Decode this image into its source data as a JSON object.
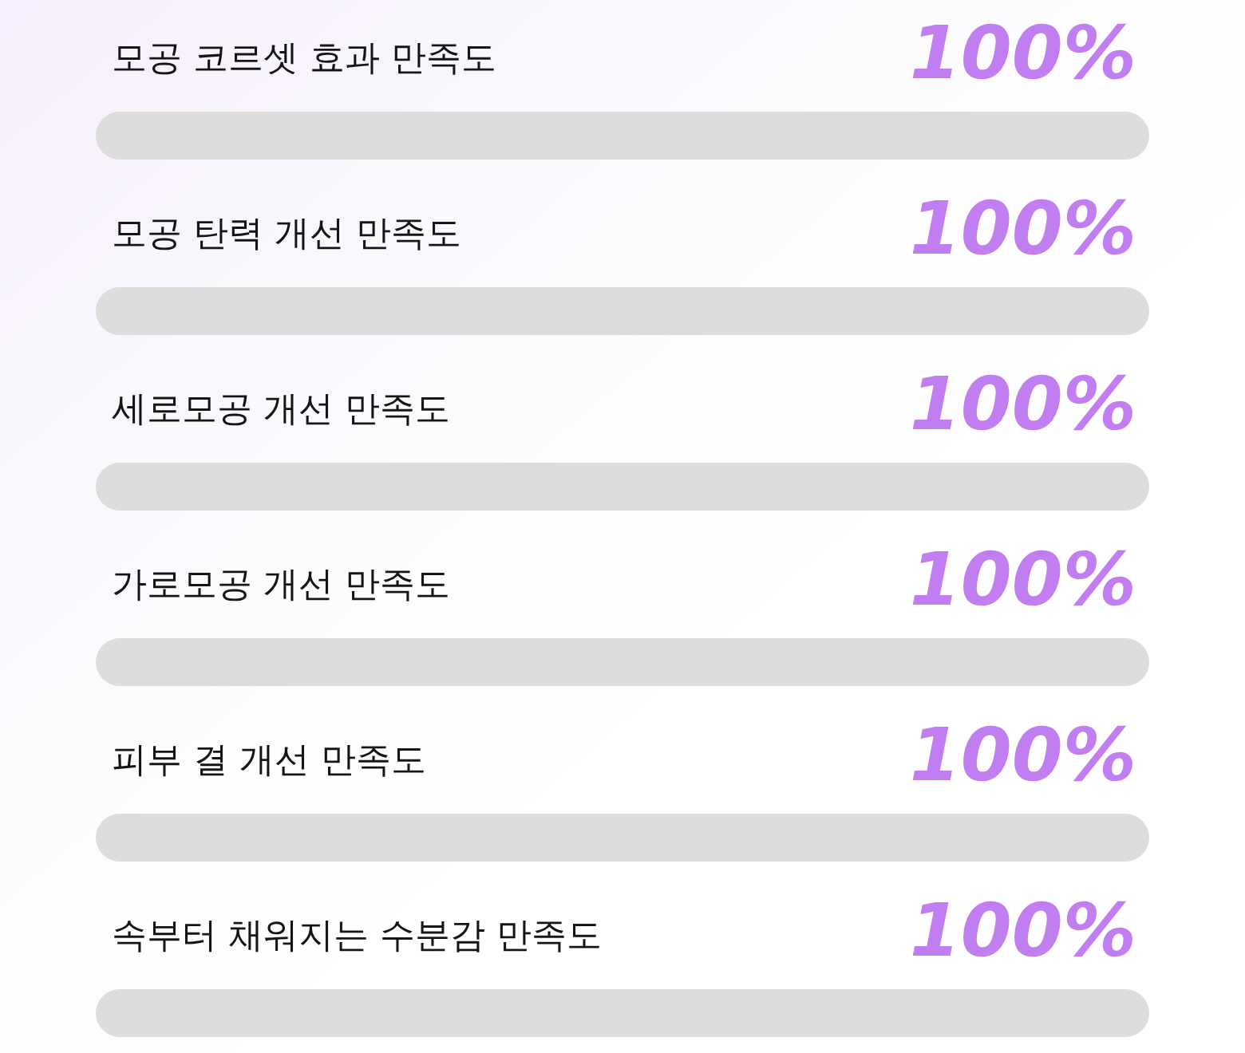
{
  "chart_data": {
    "type": "bar",
    "orientation": "horizontal",
    "categories": [
      "모공 코르셋 효과 만족도",
      "모공 탄력 개선 만족도",
      "세로모공 개선 만족도",
      "가로모공 개선 만족도",
      "피부 결 개선 만족도",
      "속부터 채워지는 수분감 만족도"
    ],
    "values": [
      100,
      100,
      100,
      100,
      100,
      100
    ],
    "color": "#dddddd",
    "value_labels": [
      "100%",
      "100%",
      "100%",
      "100%",
      "100%",
      "100%"
    ]
  }
}
